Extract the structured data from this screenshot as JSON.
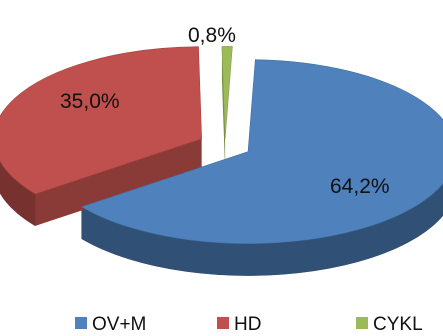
{
  "chart_data": {
    "type": "pie",
    "style": "3d-exploded",
    "title": "",
    "slices": [
      {
        "name": "OV+M",
        "value": 64.2,
        "label": "64,2%",
        "color": "#4f81bd"
      },
      {
        "name": "HD",
        "value": 35.0,
        "label": "35,0%",
        "color": "#c0504d"
      },
      {
        "name": "CYKL",
        "value": 0.8,
        "label": "0,8%",
        "color": "#9bbb59"
      }
    ],
    "legend_position": "bottom"
  }
}
